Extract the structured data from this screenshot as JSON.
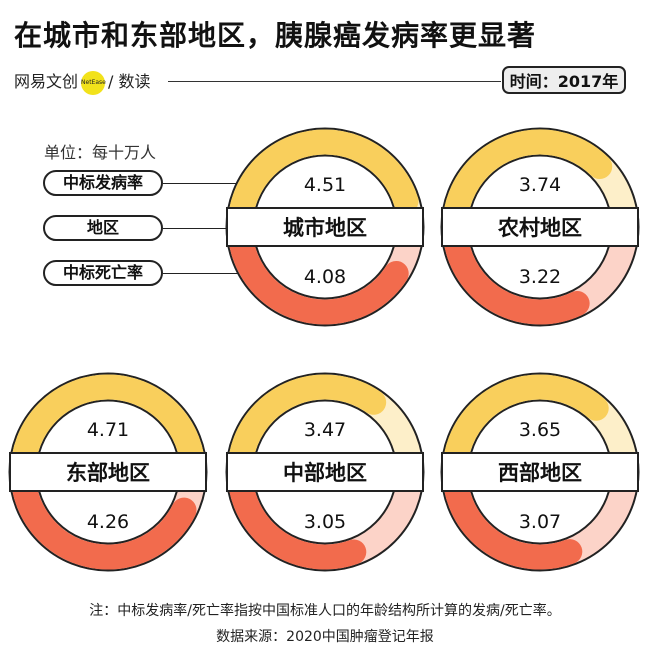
{
  "title": "在城市和东部地区，胰腺癌发病率更显著",
  "brand": {
    "name": "网易文创",
    "badge": "NetEase",
    "sub": "/ 数读"
  },
  "time_label": "时间：2017年",
  "unit_label": "单位：每十万人",
  "legend": {
    "incidence": "中标发病率",
    "region": "地区",
    "mortality": "中标死亡率"
  },
  "footnote": "注：中标发病率/死亡率指按中国标准人口的年龄结构所计算的发病/死亡率。",
  "source": "数据来源：2020中国肿瘤登记年报",
  "colors": {
    "incidence": "#f9cf5c",
    "incidence_light": "#fdefc9",
    "mortality": "#f26b4d",
    "mortality_light": "#fcd3c8",
    "outline": "#222222"
  },
  "chart_data": {
    "type": "donut-pair",
    "scale_max": 5,
    "series": [
      {
        "name": "中标发病率",
        "key": "incidence"
      },
      {
        "name": "中标死亡率",
        "key": "mortality"
      }
    ],
    "regions": [
      {
        "name": "城市地区",
        "incidence": 4.51,
        "mortality": 4.08
      },
      {
        "name": "农村地区",
        "incidence": 3.74,
        "mortality": 3.22
      },
      {
        "name": "东部地区",
        "incidence": 4.71,
        "mortality": 4.26
      },
      {
        "name": "中部地区",
        "incidence": 3.47,
        "mortality": 3.05
      },
      {
        "name": "西部地区",
        "incidence": 3.65,
        "mortality": 3.07
      }
    ]
  }
}
